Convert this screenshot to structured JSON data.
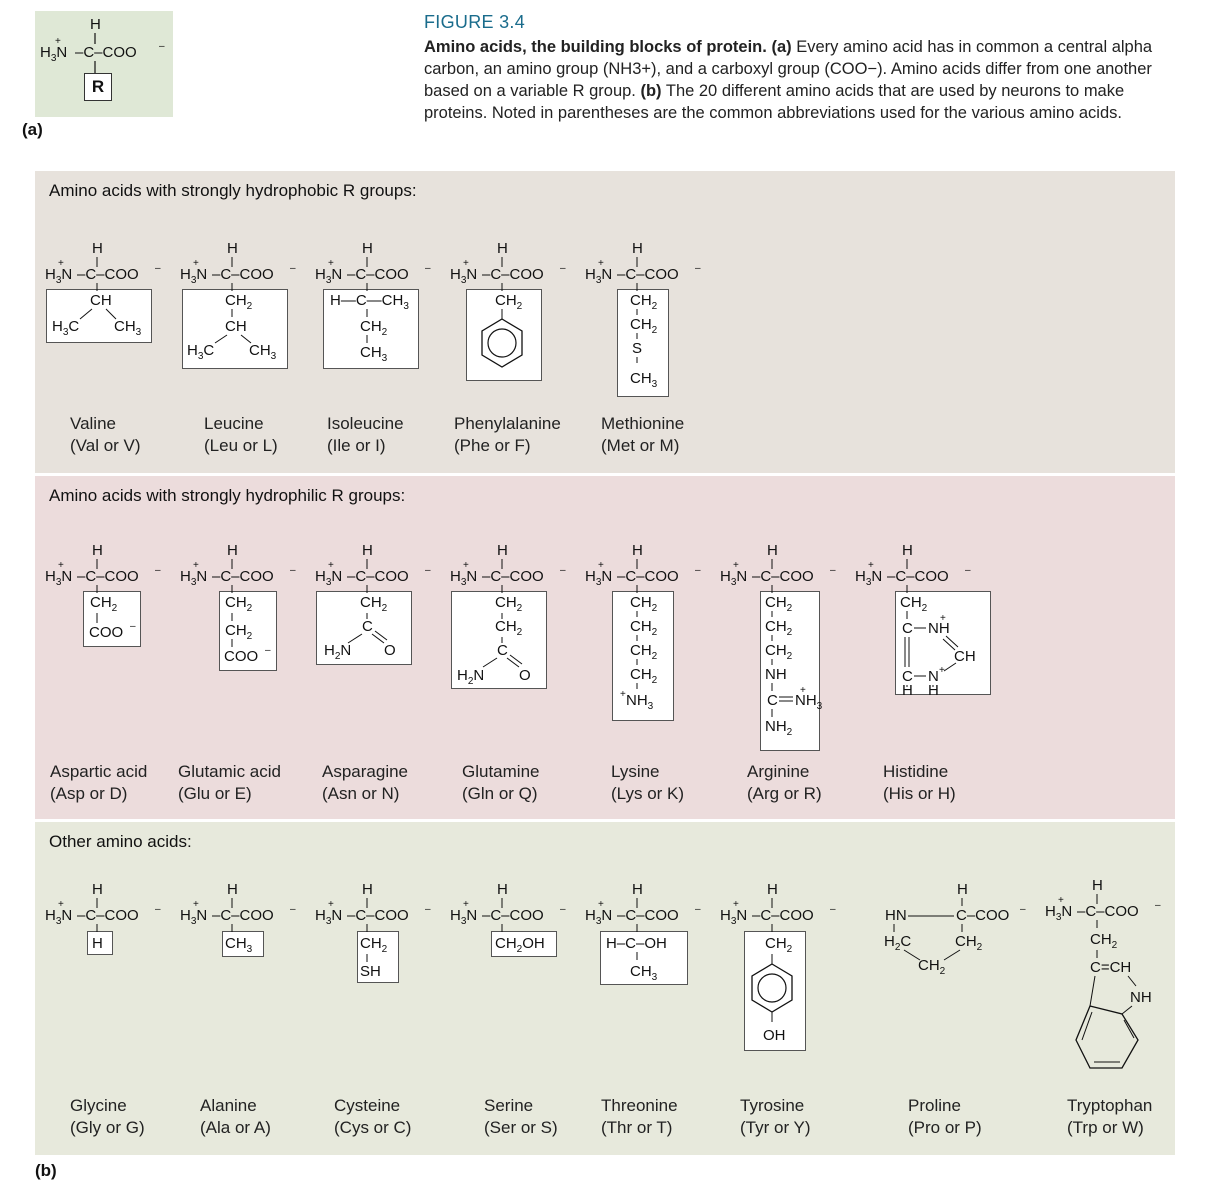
{
  "figure": {
    "label": "FIGURE 3.4",
    "title": "Amino acids, the building blocks of protein.",
    "part_a_marker": "(a)",
    "part_a_text": "Every amino acid has in common a central alpha carbon, an amino group (NH3+), and a carboxyl group (COO−). Amino acids differ from one another based on a variable R group.",
    "part_b_marker": "(b)",
    "part_b_text": "The 20 different amino acids that are used by neurons to make proteins. Noted in parentheses are the common abbreviations used for the various amino acids."
  },
  "labels": {
    "a": "(a)",
    "b": "(b)"
  },
  "generic": {
    "r": "R"
  },
  "sections": {
    "hydrophobic": "Amino acids with strongly hydrophobic R groups:",
    "hydrophilic": "Amino acids with strongly hydrophilic R groups:",
    "other": "Other amino acids:"
  },
  "amino_acids": {
    "hydrophobic": [
      {
        "name": "Valine",
        "abbr": "(Val or V)"
      },
      {
        "name": "Leucine",
        "abbr": "(Leu or L)"
      },
      {
        "name": "Isoleucine",
        "abbr": "(Ile or I)"
      },
      {
        "name": "Phenylalanine",
        "abbr": "(Phe or F)"
      },
      {
        "name": "Methionine",
        "abbr": "(Met or M)"
      }
    ],
    "hydrophilic": [
      {
        "name": "Aspartic acid",
        "abbr": "(Asp or D)"
      },
      {
        "name": "Glutamic acid",
        "abbr": "(Glu or E)"
      },
      {
        "name": "Asparagine",
        "abbr": "(Asn or N)"
      },
      {
        "name": "Glutamine",
        "abbr": "(Gln or Q)"
      },
      {
        "name": "Lysine",
        "abbr": "(Lys or K)"
      },
      {
        "name": "Arginine",
        "abbr": "(Arg or R)"
      },
      {
        "name": "Histidine",
        "abbr": "(His or H)"
      }
    ],
    "other": [
      {
        "name": "Glycine",
        "abbr": "(Gly or G)"
      },
      {
        "name": "Alanine",
        "abbr": "(Ala or A)"
      },
      {
        "name": "Cysteine",
        "abbr": "(Cys or C)"
      },
      {
        "name": "Serine",
        "abbr": "(Ser or S)"
      },
      {
        "name": "Threonine",
        "abbr": "(Thr or T)"
      },
      {
        "name": "Tyrosine",
        "abbr": "(Tyr or Y)"
      },
      {
        "name": "Proline",
        "abbr": "(Pro or P)"
      },
      {
        "name": "Tryptophan",
        "abbr": "(Trp or W)"
      }
    ]
  }
}
